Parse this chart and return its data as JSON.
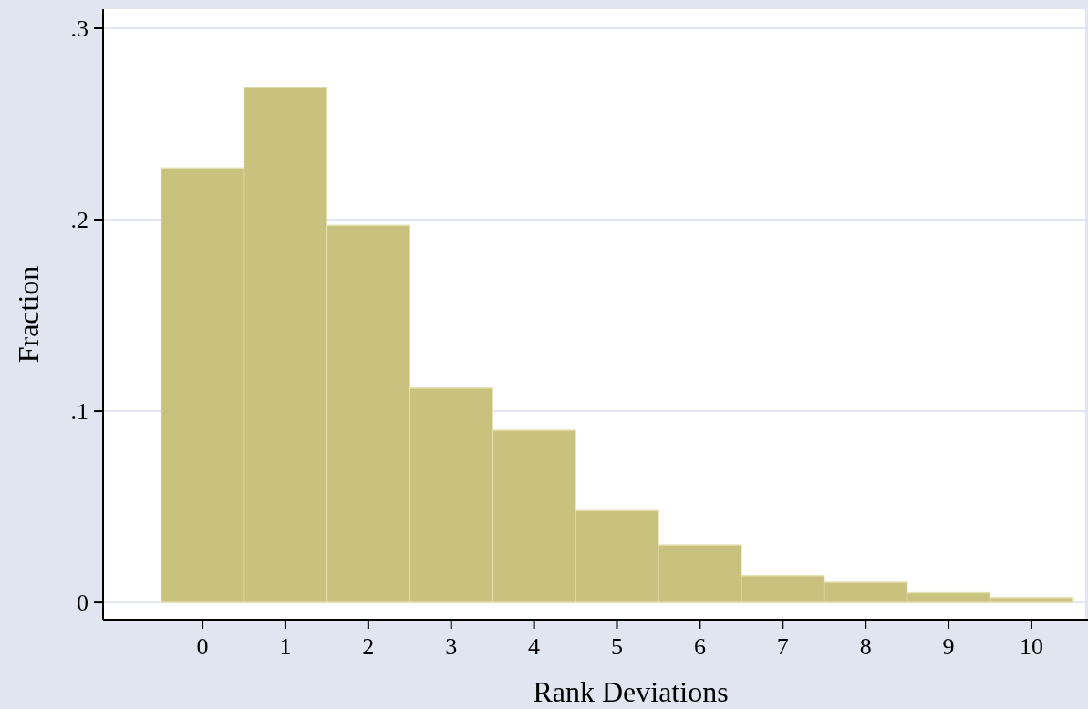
{
  "chart_data": {
    "type": "histogram",
    "xlabel": "Rank Deviations",
    "ylabel": "Fraction",
    "bins": [
      -0.5,
      0.5,
      1.5,
      2.5,
      3.5,
      4.5,
      5.5,
      6.5,
      7.5,
      8.5,
      9.5,
      10.5
    ],
    "values": [
      0.227,
      0.269,
      0.197,
      0.112,
      0.09,
      0.048,
      0.03,
      0.014,
      0.0105,
      0.005,
      0.0025
    ],
    "color": "#c9c27f",
    "xlim": [
      -1.2,
      10.65
    ],
    "xticks": [
      0,
      1,
      2,
      3,
      4,
      5,
      6,
      7,
      8,
      9,
      10
    ],
    "ylim": [
      -0.009,
      0.31
    ],
    "yticks": [
      {
        "value": 0,
        "label": "0"
      },
      {
        "value": 0.1,
        "label": ".1"
      },
      {
        "value": 0.2,
        "label": ".2"
      },
      {
        "value": 0.3,
        "label": ".3"
      }
    ],
    "grid": "y"
  }
}
